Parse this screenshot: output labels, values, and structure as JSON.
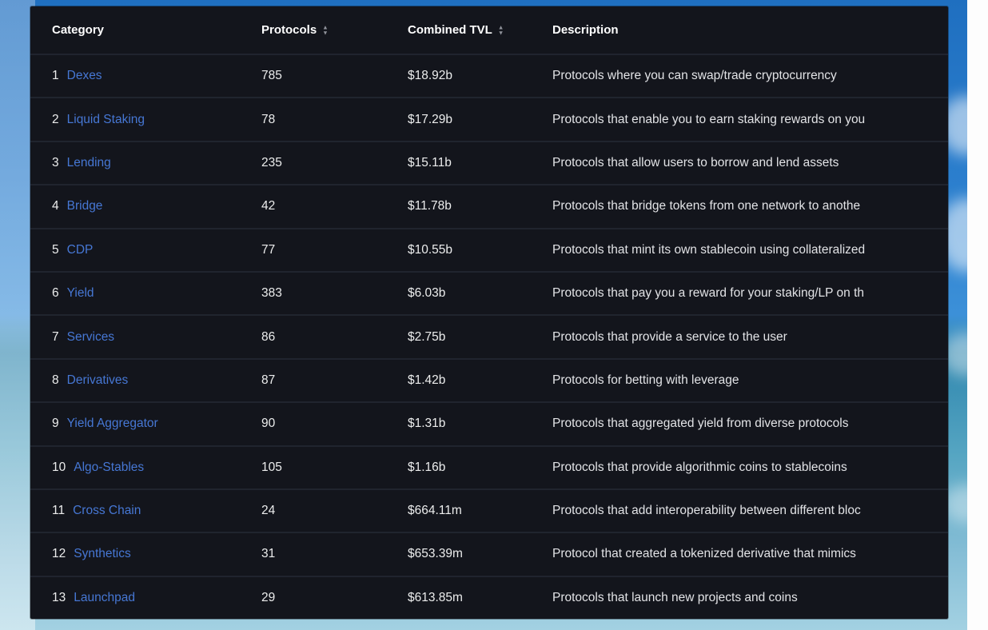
{
  "colors": {
    "panel_background": "#13151c",
    "row_separator": "#20242e",
    "header_text": "#ffffff",
    "cell_text": "#eceded",
    "link_blue": "#4677d4",
    "sky_blue": "#2b7ecd",
    "sea_light_blue": "#a3d1e2"
  },
  "icons": {
    "sort_up": "▲",
    "sort_down": "▼"
  },
  "table": {
    "columns": [
      {
        "label": "Category",
        "sortable": false
      },
      {
        "label": "Protocols",
        "sortable": true
      },
      {
        "label": "Combined TVL",
        "sortable": true
      },
      {
        "label": "Description",
        "sortable": false
      }
    ],
    "rows": [
      {
        "rank": "1",
        "category": "Dexes",
        "protocols": "785",
        "tvl": "$18.92b",
        "description": "Protocols where you can swap/trade cryptocurrency"
      },
      {
        "rank": "2",
        "category": "Liquid Staking",
        "protocols": "78",
        "tvl": "$17.29b",
        "description": "Protocols that enable you to earn staking rewards on you"
      },
      {
        "rank": "3",
        "category": "Lending",
        "protocols": "235",
        "tvl": "$15.11b",
        "description": "Protocols that allow users to borrow and lend assets"
      },
      {
        "rank": "4",
        "category": "Bridge",
        "protocols": "42",
        "tvl": "$11.78b",
        "description": "Protocols that bridge tokens from one network to anothe"
      },
      {
        "rank": "5",
        "category": "CDP",
        "protocols": "77",
        "tvl": "$10.55b",
        "description": "Protocols that mint its own stablecoin using collateralized"
      },
      {
        "rank": "6",
        "category": "Yield",
        "protocols": "383",
        "tvl": "$6.03b",
        "description": "Protocols that pay you a reward for your staking/LP on th"
      },
      {
        "rank": "7",
        "category": "Services",
        "protocols": "86",
        "tvl": "$2.75b",
        "description": "Protocols that provide a service to the user"
      },
      {
        "rank": "8",
        "category": "Derivatives",
        "protocols": "87",
        "tvl": "$1.42b",
        "description": "Protocols for betting with leverage"
      },
      {
        "rank": "9",
        "category": "Yield Aggregator",
        "protocols": "90",
        "tvl": "$1.31b",
        "description": "Protocols that aggregated yield from diverse protocols"
      },
      {
        "rank": "10",
        "category": "Algo-Stables",
        "protocols": "105",
        "tvl": "$1.16b",
        "description": "Protocols that provide algorithmic coins to stablecoins"
      },
      {
        "rank": "11",
        "category": "Cross Chain",
        "protocols": "24",
        "tvl": "$664.11m",
        "description": "Protocols that add interoperability between different bloc"
      },
      {
        "rank": "12",
        "category": "Synthetics",
        "protocols": "31",
        "tvl": "$653.39m",
        "description": "Protocol that created a tokenized derivative that mimics"
      },
      {
        "rank": "13",
        "category": "Launchpad",
        "protocols": "29",
        "tvl": "$613.85m",
        "description": "Protocols that launch new projects and coins"
      }
    ]
  }
}
